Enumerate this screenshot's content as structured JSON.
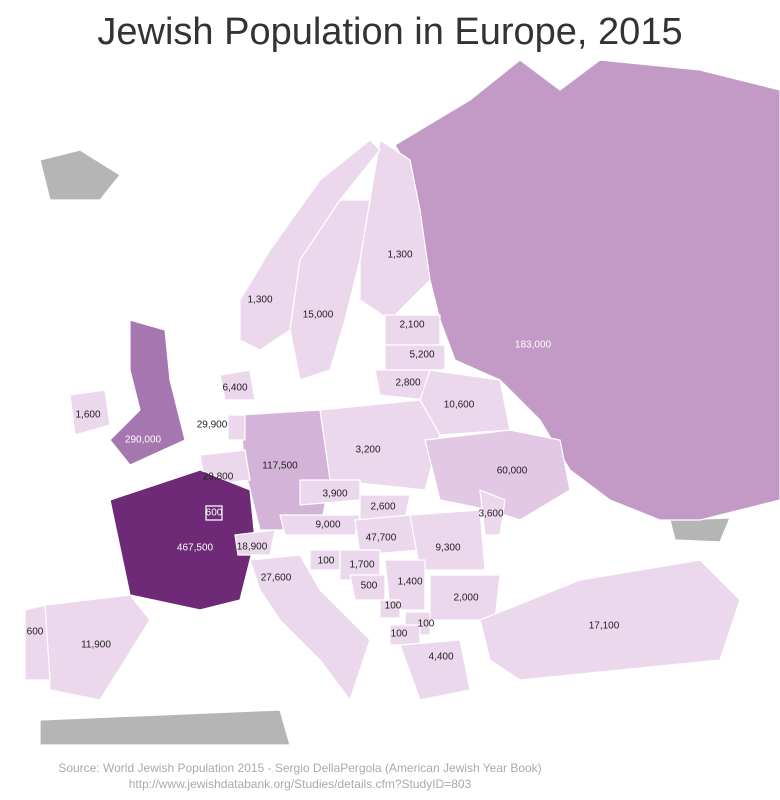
{
  "title": "Jewish Population in Europe, 2015",
  "source": [
    "Source: World Jewish Population 2015 - Sergio DellaPergola (American Jewish Year Book)",
    "http://www.jewishdatabank.org/Studies/details.cfm?StudyID=803"
  ],
  "regions": [
    {
      "label": "183,000",
      "color": "#c29ac5"
    },
    {
      "label": "1,300",
      "color": "#ecd8ec"
    },
    {
      "label": "1,300",
      "color": "#ecd8ec"
    },
    {
      "label": "15,000",
      "color": "#ecd8ec"
    },
    {
      "label": "2,100",
      "color": "#ecd8ec"
    },
    {
      "label": "5,200",
      "color": "#ecd8ec"
    },
    {
      "label": "2,800",
      "color": "#ecd8ec"
    },
    {
      "label": "10,600",
      "color": "#ecd8ec"
    },
    {
      "label": "3,200",
      "color": "#ecd8ec"
    },
    {
      "label": "117,500",
      "color": "#d4b3d8"
    },
    {
      "label": "60,000",
      "color": "#e2c8e4"
    },
    {
      "label": "6,400",
      "color": "#ecd8ec"
    },
    {
      "label": "290,000",
      "color": "#a576b0"
    },
    {
      "label": "1,600",
      "color": "#ecd8ec"
    },
    {
      "label": "29,900",
      "color": "#ecd8ec"
    },
    {
      "label": "29,800",
      "color": "#ecd8ec"
    },
    {
      "label": "467,500",
      "color": "#6e2a77"
    },
    {
      "label": "18,900",
      "color": "#ecd8ec"
    },
    {
      "label": "11,900",
      "color": "#ecd8ec"
    },
    {
      "label": "600",
      "color": "#ecd8ec"
    },
    {
      "label": "27,600",
      "color": "#ecd8ec"
    },
    {
      "label": "3,900",
      "color": "#ecd8ec"
    },
    {
      "label": "2,600",
      "color": "#ecd8ec"
    },
    {
      "label": "9,000",
      "color": "#ecd8ec"
    },
    {
      "label": "47,700",
      "color": "#ecd8ec"
    },
    {
      "label": "9,300",
      "color": "#ecd8ec"
    },
    {
      "label": "3,600",
      "color": "#ecd8ec"
    },
    {
      "label": "100",
      "color": "#ecd8ec"
    },
    {
      "label": "1,700",
      "color": "#ecd8ec"
    },
    {
      "label": "500",
      "color": "#ecd8ec"
    },
    {
      "label": "1,400",
      "color": "#ecd8ec"
    },
    {
      "label": "100",
      "color": "#ecd8ec"
    },
    {
      "label": "100",
      "color": "#ecd8ec"
    },
    {
      "label": "100",
      "color": "#ecd8ec"
    },
    {
      "label": "2,000",
      "color": "#ecd8ec"
    },
    {
      "label": "4,400",
      "color": "#ecd8ec"
    },
    {
      "label": "17,100",
      "color": "#ecd8ec"
    },
    {
      "label": "600",
      "color": "#6e2a77"
    }
  ]
}
